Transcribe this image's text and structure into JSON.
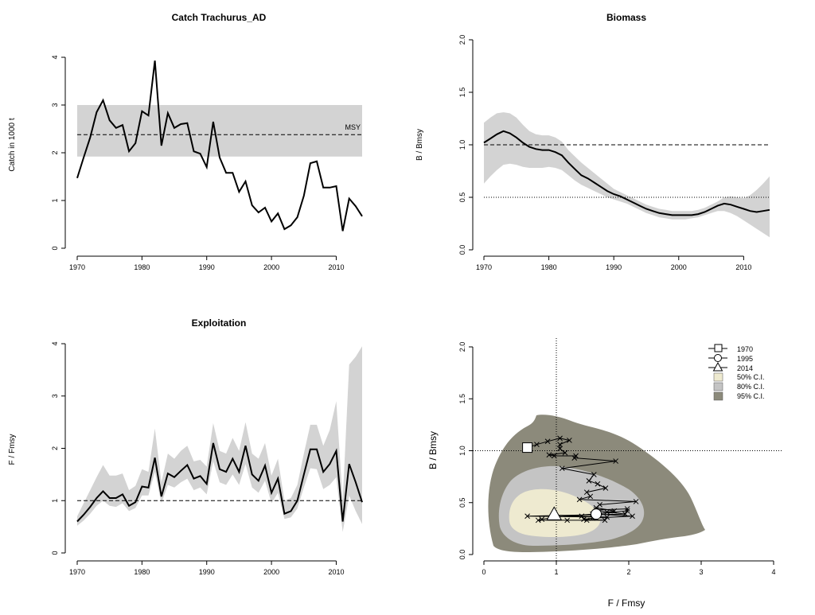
{
  "colors": {
    "band": "#d3d3d3",
    "line": "#000000",
    "ci50": "#eeead0",
    "ci80": "#c4c4c4",
    "ci95": "#8c8a7b",
    "background": "#ffffff"
  },
  "chart_data": [
    {
      "id": "catch",
      "type": "line",
      "title": "Catch Trachurus_AD",
      "xlabel": "",
      "ylabel": "Catch in 1000 t",
      "xlim": [
        1970,
        2014
      ],
      "ylim": [
        0,
        4
      ],
      "xticks": [
        1970,
        1980,
        1990,
        2000,
        2010
      ],
      "yticks": [
        0,
        1,
        2,
        3,
        4
      ],
      "x": [
        1970,
        1971,
        1972,
        1973,
        1974,
        1975,
        1976,
        1977,
        1978,
        1979,
        1980,
        1981,
        1982,
        1983,
        1984,
        1985,
        1986,
        1987,
        1988,
        1989,
        1990,
        1991,
        1992,
        1993,
        1994,
        1995,
        1996,
        1997,
        1998,
        1999,
        2000,
        2001,
        2002,
        2003,
        2004,
        2005,
        2006,
        2007,
        2008,
        2009,
        2010,
        2011,
        2012,
        2013,
        2014
      ],
      "series": [
        {
          "values": [
            1.47,
            1.9,
            2.32,
            2.85,
            3.1,
            2.68,
            2.52,
            2.58,
            2.03,
            2.2,
            2.87,
            2.78,
            3.93,
            2.15,
            2.83,
            2.52,
            2.6,
            2.62,
            2.03,
            1.98,
            1.7,
            2.65,
            1.9,
            1.58,
            1.58,
            1.18,
            1.4,
            0.9,
            0.75,
            0.85,
            0.56,
            0.73,
            0.4,
            0.48,
            0.65,
            1.1,
            1.78,
            1.82,
            1.27,
            1.27,
            1.3,
            0.36,
            1.04,
            0.88,
            0.67
          ]
        }
      ],
      "band": {
        "lower": 1.92,
        "upper": 3.0
      },
      "reference_lines": [
        {
          "y": 2.38,
          "style": "dashed",
          "label": "MSY"
        }
      ],
      "annotations": [
        "MSY"
      ]
    },
    {
      "id": "biomass",
      "type": "line",
      "title": "Biomass",
      "xlabel": "",
      "ylabel": "B / Bmsy",
      "xlim": [
        1970,
        2014
      ],
      "ylim": [
        0,
        2
      ],
      "xticks": [
        1970,
        1980,
        1990,
        2000,
        2010
      ],
      "yticks": [
        0.0,
        0.5,
        1.0,
        1.5,
        2.0
      ],
      "ytick_labels": [
        "0.0",
        "0.5",
        "1.0",
        "1.5",
        "2.0"
      ],
      "x": [
        1970,
        1971,
        1972,
        1973,
        1974,
        1975,
        1976,
        1977,
        1978,
        1979,
        1980,
        1981,
        1982,
        1983,
        1984,
        1985,
        1986,
        1987,
        1988,
        1989,
        1990,
        1991,
        1992,
        1993,
        1994,
        1995,
        1996,
        1997,
        1998,
        1999,
        2000,
        2001,
        2002,
        2003,
        2004,
        2005,
        2006,
        2007,
        2008,
        2009,
        2010,
        2011,
        2012,
        2013,
        2014
      ],
      "series": [
        {
          "values": [
            1.02,
            1.06,
            1.1,
            1.13,
            1.11,
            1.07,
            1.02,
            0.98,
            0.96,
            0.95,
            0.95,
            0.93,
            0.9,
            0.83,
            0.77,
            0.71,
            0.68,
            0.64,
            0.6,
            0.56,
            0.53,
            0.51,
            0.48,
            0.45,
            0.42,
            0.39,
            0.37,
            0.35,
            0.34,
            0.33,
            0.33,
            0.33,
            0.33,
            0.34,
            0.36,
            0.39,
            0.42,
            0.44,
            0.43,
            0.41,
            0.39,
            0.37,
            0.36,
            0.37,
            0.38
          ]
        }
      ],
      "ci_lower": [
        0.63,
        0.7,
        0.76,
        0.81,
        0.82,
        0.81,
        0.79,
        0.78,
        0.78,
        0.78,
        0.79,
        0.78,
        0.76,
        0.71,
        0.66,
        0.62,
        0.59,
        0.56,
        0.53,
        0.5,
        0.48,
        0.46,
        0.44,
        0.41,
        0.38,
        0.35,
        0.33,
        0.31,
        0.3,
        0.29,
        0.29,
        0.29,
        0.3,
        0.31,
        0.33,
        0.35,
        0.37,
        0.37,
        0.35,
        0.32,
        0.28,
        0.24,
        0.2,
        0.16,
        0.12
      ],
      "ci_upper": [
        1.21,
        1.26,
        1.3,
        1.31,
        1.3,
        1.26,
        1.19,
        1.13,
        1.1,
        1.09,
        1.09,
        1.07,
        1.03,
        0.95,
        0.89,
        0.83,
        0.78,
        0.73,
        0.68,
        0.63,
        0.58,
        0.55,
        0.52,
        0.49,
        0.46,
        0.43,
        0.41,
        0.39,
        0.38,
        0.37,
        0.37,
        0.37,
        0.37,
        0.38,
        0.4,
        0.43,
        0.46,
        0.5,
        0.51,
        0.5,
        0.49,
        0.52,
        0.57,
        0.63,
        0.7
      ],
      "reference_lines": [
        {
          "y": 1.0,
          "style": "dashed"
        },
        {
          "y": 0.5,
          "style": "dotted"
        }
      ]
    },
    {
      "id": "exploitation",
      "type": "line",
      "title": "Exploitation",
      "xlabel": "",
      "ylabel": "F / Fmsy",
      "xlim": [
        1970,
        2014
      ],
      "ylim": [
        0,
        4
      ],
      "xticks": [
        1970,
        1980,
        1990,
        2000,
        2010
      ],
      "yticks": [
        0,
        1,
        2,
        3,
        4
      ],
      "x": [
        1970,
        1971,
        1972,
        1973,
        1974,
        1975,
        1976,
        1977,
        1978,
        1979,
        1980,
        1981,
        1982,
        1983,
        1984,
        1985,
        1986,
        1987,
        1988,
        1989,
        1990,
        1991,
        1992,
        1993,
        1994,
        1995,
        1996,
        1997,
        1998,
        1999,
        2000,
        2001,
        2002,
        2003,
        2004,
        2005,
        2006,
        2007,
        2008,
        2009,
        2010,
        2011,
        2012,
        2013,
        2014
      ],
      "series": [
        {
          "values": [
            0.6,
            0.73,
            0.88,
            1.05,
            1.18,
            1.05,
            1.05,
            1.12,
            0.9,
            0.97,
            1.27,
            1.25,
            1.82,
            1.08,
            1.52,
            1.45,
            1.57,
            1.68,
            1.42,
            1.47,
            1.32,
            2.1,
            1.6,
            1.55,
            1.8,
            1.55,
            2.05,
            1.5,
            1.38,
            1.67,
            1.15,
            1.42,
            0.75,
            0.8,
            1.0,
            1.5,
            1.98,
            1.98,
            1.55,
            1.7,
            1.95,
            0.6,
            1.7,
            1.35,
            0.97
          ]
        }
      ],
      "ci_lower": [
        0.52,
        0.62,
        0.75,
        0.9,
        1.0,
        0.9,
        0.88,
        0.95,
        0.8,
        0.86,
        1.1,
        1.1,
        1.55,
        0.95,
        1.3,
        1.25,
        1.35,
        1.42,
        1.2,
        1.25,
        1.12,
        1.75,
        1.35,
        1.3,
        1.5,
        1.3,
        1.7,
        1.25,
        1.15,
        1.38,
        0.95,
        1.15,
        0.65,
        0.68,
        0.85,
        1.25,
        1.62,
        1.6,
        1.22,
        1.3,
        1.45,
        0.4,
        1.1,
        0.8,
        0.55
      ],
      "ci_upper": [
        0.7,
        0.95,
        1.2,
        1.45,
        1.68,
        1.48,
        1.48,
        1.52,
        1.2,
        1.28,
        1.6,
        1.55,
        2.38,
        1.35,
        1.9,
        1.8,
        1.95,
        2.05,
        1.75,
        1.78,
        1.65,
        2.48,
        1.95,
        1.9,
        2.2,
        1.95,
        2.5,
        1.9,
        1.8,
        2.1,
        1.48,
        1.8,
        1.0,
        1.05,
        1.3,
        1.9,
        2.45,
        2.45,
        2.05,
        2.35,
        2.9,
        1.0,
        3.6,
        3.75,
        3.95
      ],
      "reference_lines": [
        {
          "y": 1.0,
          "style": "dashed"
        }
      ]
    },
    {
      "id": "phase",
      "type": "scatter",
      "title": "",
      "xlabel": "F / Fmsy",
      "ylabel": "B / Bmsy",
      "xlim": [
        0,
        4
      ],
      "ylim": [
        0,
        2
      ],
      "xticks": [
        0,
        1,
        2,
        3,
        4
      ],
      "yticks": [
        0.0,
        0.5,
        1.0,
        1.5,
        2.0
      ],
      "ytick_labels": [
        "0.0",
        "0.5",
        "1.0",
        "1.5",
        "2.0"
      ],
      "trajectory": [
        [
          0.6,
          1.03
        ],
        [
          0.73,
          1.06
        ],
        [
          0.88,
          1.09
        ],
        [
          1.05,
          1.12
        ],
        [
          1.18,
          1.1
        ],
        [
          1.05,
          1.06
        ],
        [
          1.05,
          1.02
        ],
        [
          1.12,
          0.98
        ],
        [
          0.9,
          0.96
        ],
        [
          0.97,
          0.95
        ],
        [
          1.27,
          0.95
        ],
        [
          1.25,
          0.93
        ],
        [
          1.82,
          0.9
        ],
        [
          1.08,
          0.83
        ],
        [
          1.52,
          0.77
        ],
        [
          1.45,
          0.71
        ],
        [
          1.57,
          0.68
        ],
        [
          1.68,
          0.64
        ],
        [
          1.42,
          0.6
        ],
        [
          1.47,
          0.56
        ],
        [
          1.32,
          0.53
        ],
        [
          2.1,
          0.51
        ],
        [
          1.6,
          0.48
        ],
        [
          1.55,
          0.45
        ],
        [
          1.8,
          0.42
        ],
        [
          1.55,
          0.39
        ],
        [
          2.05,
          0.37
        ],
        [
          1.5,
          0.35
        ],
        [
          1.38,
          0.34
        ],
        [
          1.67,
          0.33
        ],
        [
          1.15,
          0.33
        ],
        [
          1.42,
          0.33
        ],
        [
          0.75,
          0.33
        ],
        [
          0.8,
          0.34
        ],
        [
          1.0,
          0.36
        ],
        [
          1.5,
          0.39
        ],
        [
          1.98,
          0.42
        ],
        [
          1.98,
          0.44
        ],
        [
          1.55,
          0.43
        ],
        [
          1.7,
          0.41
        ],
        [
          1.95,
          0.39
        ],
        [
          0.6,
          0.37
        ],
        [
          1.7,
          0.36
        ],
        [
          1.35,
          0.37
        ],
        [
          0.97,
          0.38
        ]
      ],
      "markers": [
        {
          "year": "1970",
          "shape": "square",
          "x": 0.6,
          "y": 1.03
        },
        {
          "year": "1995",
          "shape": "circle",
          "x": 1.55,
          "y": 0.39
        },
        {
          "year": "2014",
          "shape": "triangle",
          "x": 0.97,
          "y": 0.38
        }
      ],
      "reference_lines": [
        {
          "x": 1.0,
          "style": "dotted"
        },
        {
          "y": 1.0,
          "style": "dotted"
        }
      ],
      "ci_regions": [
        {
          "level": "95% C.I.",
          "color_key": "ci95"
        },
        {
          "level": "80% C.I.",
          "color_key": "ci80"
        },
        {
          "level": "50% C.I.",
          "color_key": "ci50"
        }
      ],
      "legend": {
        "position": "top-right",
        "entries": [
          "1970",
          "1995",
          "2014",
          "50% C.I.",
          "80% C.I.",
          "95% C.I."
        ]
      }
    }
  ]
}
